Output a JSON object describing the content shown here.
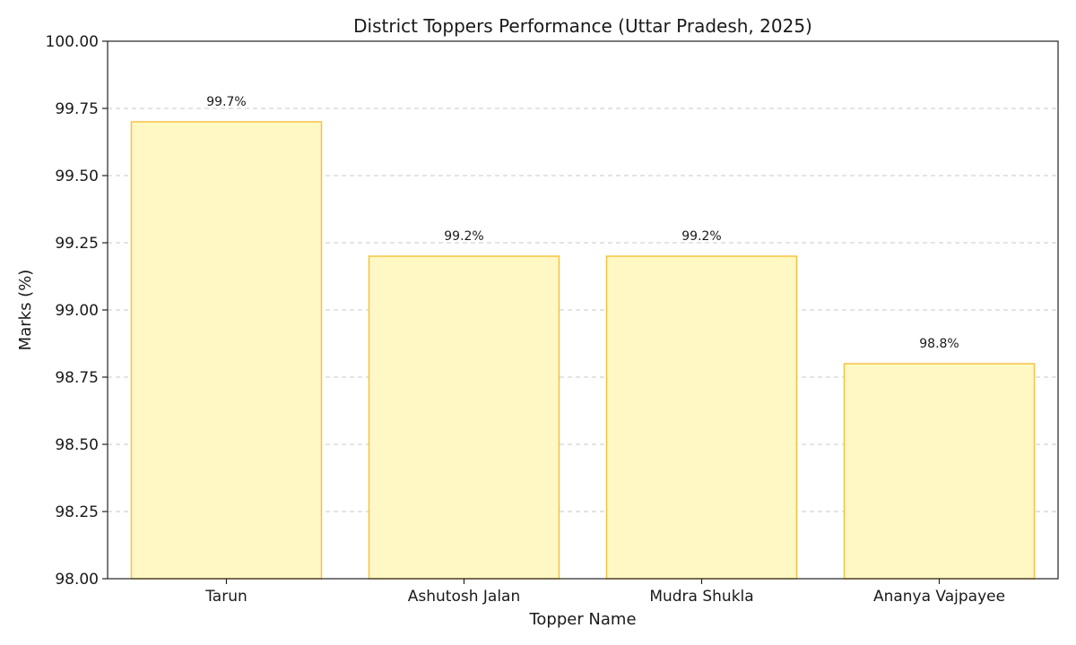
{
  "chart_data": {
    "type": "bar",
    "title": "District Toppers Performance (Uttar Pradesh, 2025)",
    "xlabel": "Topper Name",
    "ylabel": "Marks (%)",
    "categories": [
      "Tarun",
      "Ashutosh Jalan",
      "Mudra Shukla",
      "Ananya Vajpayee"
    ],
    "values": [
      99.7,
      99.2,
      99.2,
      98.8
    ],
    "value_labels": [
      "99.7%",
      "99.2%",
      "99.2%",
      "98.8%"
    ],
    "ylim": [
      98.0,
      100.0
    ],
    "yticks": [
      98.0,
      98.25,
      98.5,
      98.75,
      99.0,
      99.25,
      99.5,
      99.75,
      100.0
    ],
    "ytick_labels": [
      "98.00",
      "98.25",
      "98.50",
      "98.75",
      "99.00",
      "99.25",
      "99.50",
      "99.75",
      "100.00"
    ],
    "grid": "y-dashed",
    "colors": {
      "bar_fill": "#fff8c4",
      "bar_edge": "#f5c242"
    }
  }
}
